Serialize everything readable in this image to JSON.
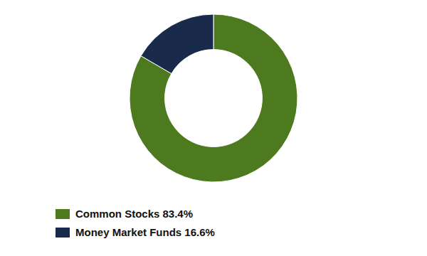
{
  "chart_data": {
    "type": "pie",
    "categories": [
      "Common Stocks 83.4%",
      "Money Market Funds 16.6%"
    ],
    "values": [
      83.4,
      16.6
    ],
    "colors": [
      "#4d7a1f",
      "#1a2a4a"
    ],
    "legend": "lower left"
  }
}
